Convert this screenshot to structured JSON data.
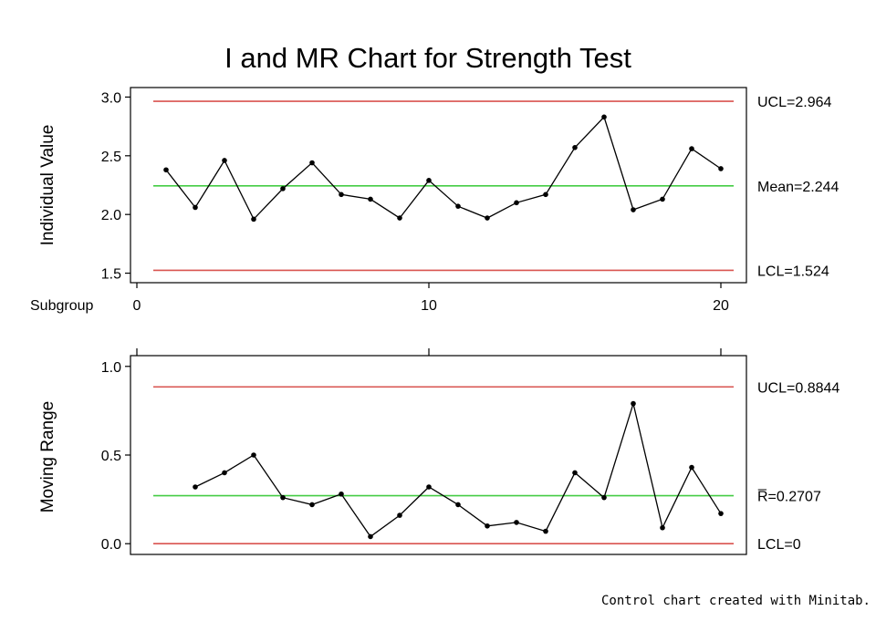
{
  "colors": {
    "control_limit": "#d9534f",
    "center_line": "#44cc44",
    "series": "#000000"
  },
  "chart": {
    "title": "I and MR Chart for Strength Test",
    "credit": "Control chart created with Minitab."
  },
  "chart_data": [
    {
      "type": "line",
      "ylabel": "Individual Value",
      "xlabel": "Subgroup",
      "xlim": [
        0,
        21
      ],
      "ylim": [
        1.45,
        3.05
      ],
      "xticks": [
        0,
        10,
        20
      ],
      "yticks": [
        1.5,
        2.0,
        2.5,
        3.0
      ],
      "ytick_labels": [
        "1.5",
        "2.0",
        "2.5",
        "3.0"
      ],
      "grid": false,
      "x": [
        1,
        2,
        3,
        4,
        5,
        6,
        7,
        8,
        9,
        10,
        11,
        12,
        13,
        14,
        15,
        16,
        17,
        18,
        19,
        20
      ],
      "values": [
        2.38,
        2.06,
        2.46,
        1.96,
        2.22,
        2.44,
        2.17,
        2.13,
        1.97,
        2.29,
        2.07,
        1.97,
        2.1,
        2.17,
        2.57,
        2.83,
        2.04,
        2.13,
        2.56,
        2.39
      ],
      "reference_lines": [
        {
          "value": 2.964,
          "label": "UCL=2.964",
          "kind": "limit"
        },
        {
          "value": 2.244,
          "label": "Mean=2.244",
          "kind": "center"
        },
        {
          "value": 1.524,
          "label": "LCL=1.524",
          "kind": "limit"
        }
      ]
    },
    {
      "type": "line",
      "ylabel": "Moving Range",
      "xlim": [
        0,
        21
      ],
      "ylim": [
        -0.04,
        1.04
      ],
      "xticks": [
        0,
        10,
        20
      ],
      "yticks": [
        0.0,
        0.5,
        1.0
      ],
      "ytick_labels": [
        "0.0",
        "0.5",
        "1.0"
      ],
      "grid": false,
      "x": [
        2,
        3,
        4,
        5,
        6,
        7,
        8,
        9,
        10,
        11,
        12,
        13,
        14,
        15,
        16,
        17,
        18,
        19,
        20
      ],
      "values": [
        0.32,
        0.4,
        0.5,
        0.26,
        0.22,
        0.28,
        0.04,
        0.16,
        0.32,
        0.22,
        0.1,
        0.12,
        0.07,
        0.4,
        0.26,
        0.79,
        0.09,
        0.43,
        0.17
      ],
      "reference_lines": [
        {
          "value": 0.8844,
          "label": "UCL=0.8844",
          "kind": "limit"
        },
        {
          "value": 0.2707,
          "label": "R̅=0.2707",
          "kind": "center"
        },
        {
          "value": 0.0,
          "label": "LCL=0",
          "kind": "limit"
        }
      ]
    }
  ]
}
